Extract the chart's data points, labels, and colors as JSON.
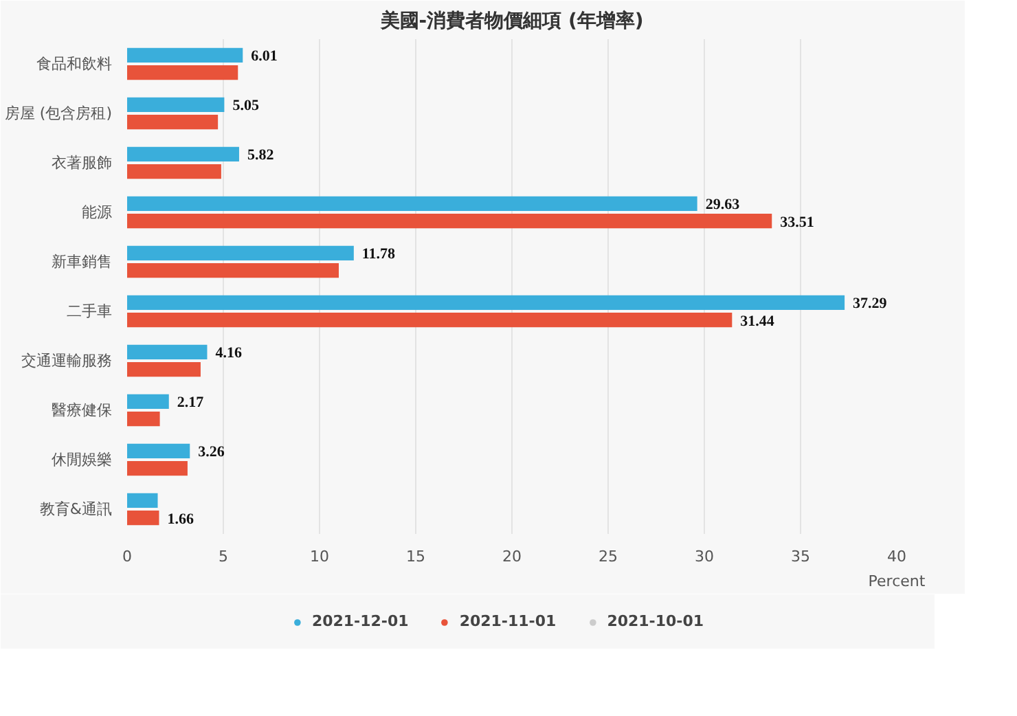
{
  "chart_data": {
    "type": "bar",
    "orientation": "horizontal",
    "title": "美國-消費者物價細項 (年增率)",
    "xlabel": "Percent",
    "categories": [
      "食品和飲料",
      "房屋 (包含房租)",
      "衣著服飾",
      "能源",
      "新車銷售",
      "二手車",
      "交通運輸服務",
      "醫療健保",
      "休閒娛樂",
      "教育&通訊"
    ],
    "series": [
      {
        "name": "2021-12-01",
        "color": "#3aaedb",
        "values": [
          6.01,
          5.05,
          5.82,
          29.63,
          11.78,
          37.29,
          4.16,
          2.17,
          3.26,
          1.59
        ],
        "value_labels": [
          "6.01",
          "5.05",
          "5.82",
          "29.63",
          "11.78",
          "37.29",
          "4.16",
          "2.17",
          "3.26",
          null
        ]
      },
      {
        "name": "2021-11-01",
        "color": "#e8533a",
        "values": [
          5.76,
          4.72,
          4.89,
          33.51,
          11.0,
          31.44,
          3.82,
          1.7,
          3.14,
          1.66
        ],
        "value_labels": [
          null,
          null,
          null,
          "33.51",
          null,
          "31.44",
          null,
          null,
          null,
          "1.66"
        ]
      },
      {
        "name": "2021-10-01",
        "color": "#cccccc",
        "values": [
          null,
          null,
          null,
          null,
          null,
          null,
          null,
          null,
          null,
          null
        ]
      }
    ],
    "xlim": [
      0,
      40
    ],
    "xticks": [
      0,
      5,
      10,
      15,
      20,
      25,
      30,
      35,
      40
    ],
    "grid": "x",
    "legend": "bottom"
  }
}
